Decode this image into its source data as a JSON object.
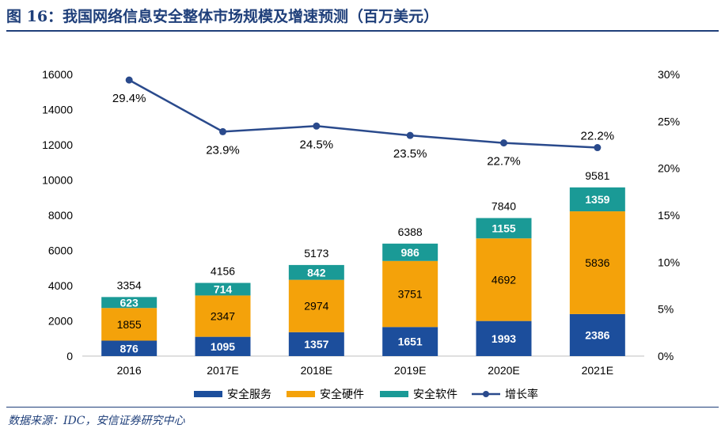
{
  "title": "图 16：我国网络信息安全整体市场规模及增速预测（百万美元）",
  "source": "数据来源：IDC，安信证券研究中心",
  "colors": {
    "service": "#1c4e9c",
    "hardware": "#f4a20a",
    "software": "#1a9a96",
    "growth": "#2a4a8c",
    "title": "#1f3f7a"
  },
  "chart_data": {
    "type": "bar",
    "stacked": true,
    "categories": [
      "2016",
      "2017E",
      "2018E",
      "2019E",
      "2020E",
      "2021E"
    ],
    "series": [
      {
        "name": "安全服务",
        "values": [
          876,
          1095,
          1357,
          1651,
          1993,
          2386
        ]
      },
      {
        "name": "安全硬件",
        "values": [
          1855,
          2347,
          2974,
          3751,
          4692,
          5836
        ]
      },
      {
        "name": "安全软件",
        "values": [
          623,
          714,
          842,
          986,
          1155,
          1359
        ]
      }
    ],
    "totals": [
      3354,
      4156,
      5173,
      6388,
      7840,
      9581
    ],
    "line_series": {
      "name": "增长率",
      "axis": "right",
      "values": [
        29.4,
        23.9,
        24.5,
        23.5,
        22.7,
        22.2
      ],
      "labels": [
        "29.4%",
        "23.9%",
        "24.5%",
        "23.5%",
        "22.7%",
        "22.2%"
      ]
    },
    "y_left": {
      "min": 0,
      "max": 16000,
      "ticks": [
        "0",
        "2000",
        "4000",
        "6000",
        "8000",
        "10000",
        "12000",
        "14000",
        "16000"
      ]
    },
    "y_right": {
      "min": 0,
      "max": 30,
      "ticks": [
        "0%",
        "5%",
        "10%",
        "15%",
        "20%",
        "25%",
        "30%"
      ]
    },
    "grid": false,
    "legend": "bottom"
  }
}
